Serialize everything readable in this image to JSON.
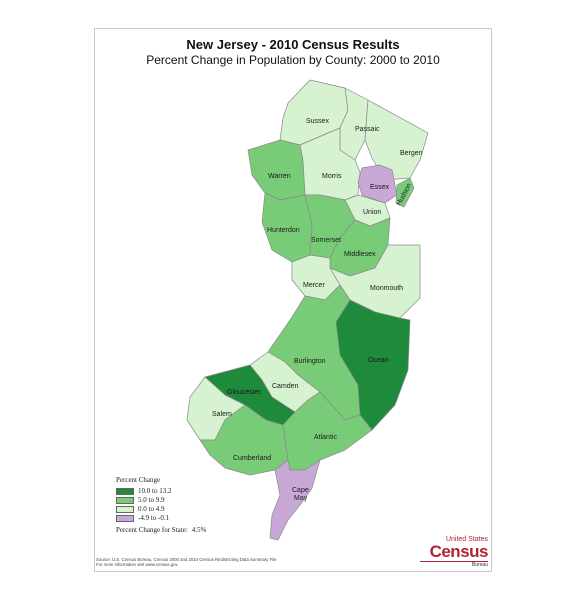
{
  "map": {
    "title": "New Jersey - 2010 Census Results",
    "subtitle": "Percent Change in Population by County:  2000 to 2010"
  },
  "legend": {
    "title": "Percent Change",
    "classes": [
      {
        "label": "10.0 to 13.2",
        "color": "#1e8a3c"
      },
      {
        "label": "5.0 to 9.9",
        "color": "#78cc78"
      },
      {
        "label": "0.0 to 4.9",
        "color": "#d6f2d0"
      },
      {
        "label": "-4.9 to -0.1",
        "color": "#c7a8d6"
      }
    ],
    "state_change_label": "Percent Change for State:",
    "state_change_value": "4.5%"
  },
  "counties": [
    {
      "name": "Sussex",
      "class": 2
    },
    {
      "name": "Passaic",
      "class": 2
    },
    {
      "name": "Bergen",
      "class": 2
    },
    {
      "name": "Warren",
      "class": 1
    },
    {
      "name": "Morris",
      "class": 2
    },
    {
      "name": "Essex",
      "class": 3
    },
    {
      "name": "Hudson",
      "class": 1
    },
    {
      "name": "Union",
      "class": 2
    },
    {
      "name": "Hunterdon",
      "class": 1
    },
    {
      "name": "Somerset",
      "class": 1
    },
    {
      "name": "Middlesex",
      "class": 1
    },
    {
      "name": "Mercer",
      "class": 2
    },
    {
      "name": "Monmouth",
      "class": 2
    },
    {
      "name": "Burlington",
      "class": 1
    },
    {
      "name": "Ocean",
      "class": 0
    },
    {
      "name": "Camden",
      "class": 2
    },
    {
      "name": "Gloucester",
      "class": 0
    },
    {
      "name": "Salem",
      "class": 2
    },
    {
      "name": "Cumberland",
      "class": 1
    },
    {
      "name": "Atlantic",
      "class": 1
    },
    {
      "name": "Cape May",
      "class": 3
    }
  ],
  "source": {
    "line1": "Source:  U.S. Census Bureau, Census 2000 and 2010 Census Redistricting Data Summary File",
    "line2": "For more information visit www.census.gov"
  },
  "logo": {
    "line1": "United States",
    "line2": "Census",
    "line3": "Bureau"
  }
}
